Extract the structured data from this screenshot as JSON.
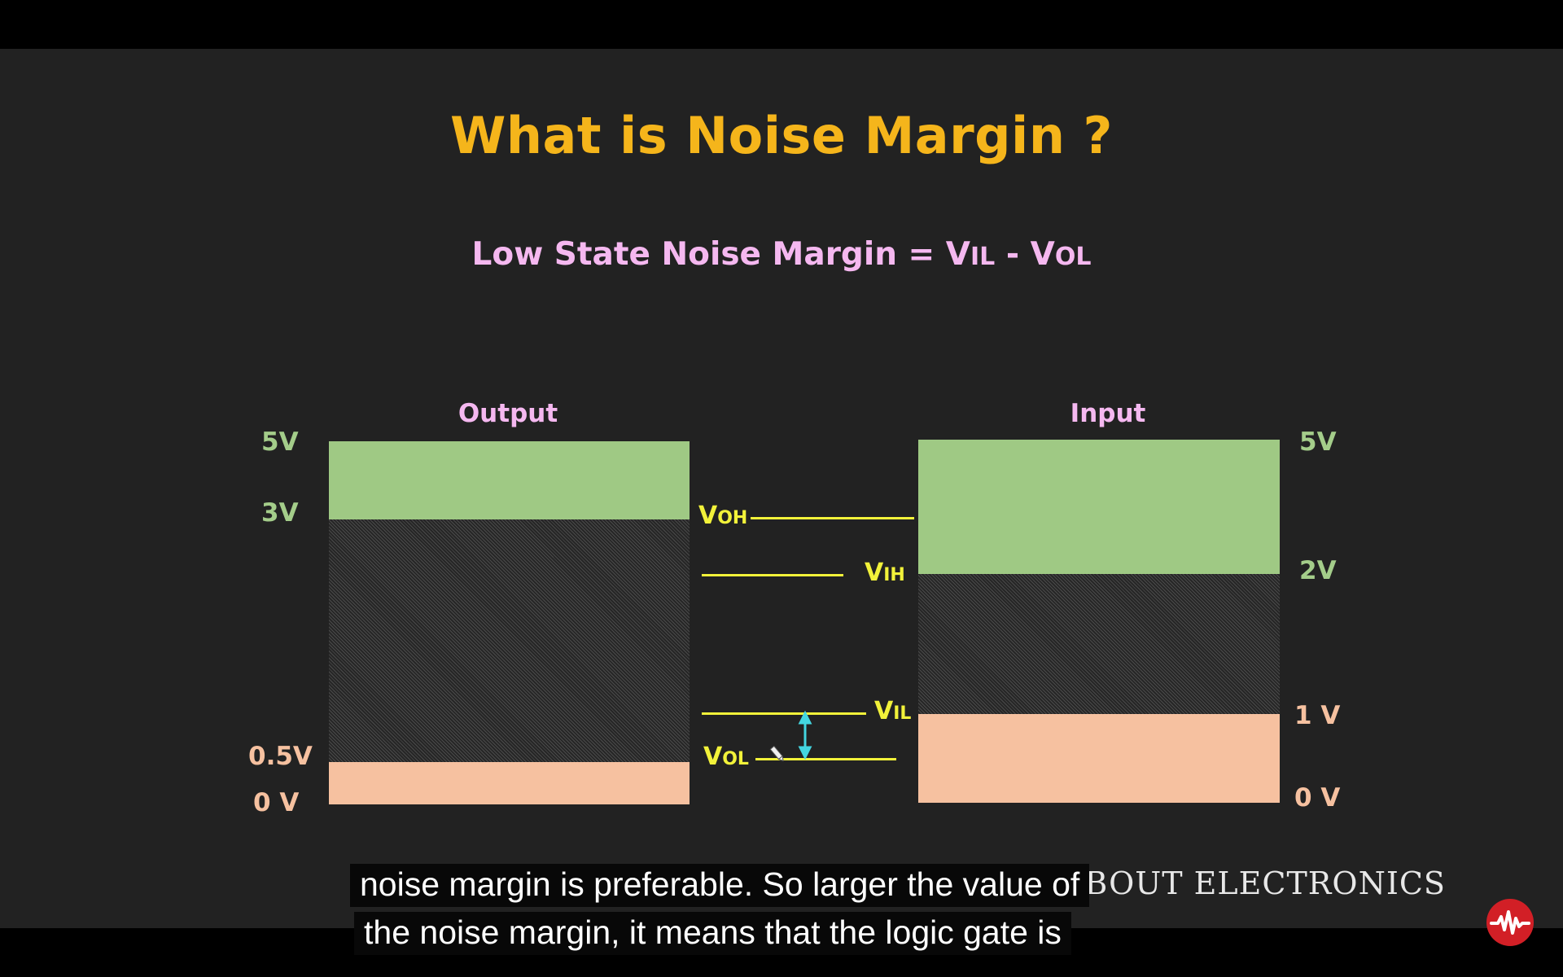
{
  "slide": {
    "title": "What is Noise Margin ?",
    "formula": {
      "prefix": "Low State Noise Margin = V",
      "sub1": "IL",
      "middle": " - V",
      "sub2": "OL"
    },
    "output_label": "Output",
    "input_label": "Input",
    "output_scale": [
      "5V",
      "3V",
      "0.5V",
      "0 V"
    ],
    "input_scale": [
      "5V",
      "2V",
      "1 V",
      "0 V"
    ],
    "levels": {
      "voh": {
        "main": "V",
        "sub": "OH"
      },
      "vih": {
        "main": "V",
        "sub": "IH"
      },
      "vil": {
        "main": "V",
        "sub": "IL"
      },
      "vol": {
        "main": "V",
        "sub": "OL"
      }
    },
    "colors": {
      "title": "#F5B51B",
      "formula": "#F5B8F0",
      "green": "#9FC984",
      "peach": "#F6C1A0",
      "level_line": "#F2F23A",
      "arrow": "#43D6E0"
    }
  },
  "watermark": "ALL ABOUT ELECTRONICS",
  "captions": [
    "noise margin is preferable. So larger the value of",
    "the noise margin, it means that the logic gate is"
  ],
  "logo_icon": "waveform-logo-icon"
}
